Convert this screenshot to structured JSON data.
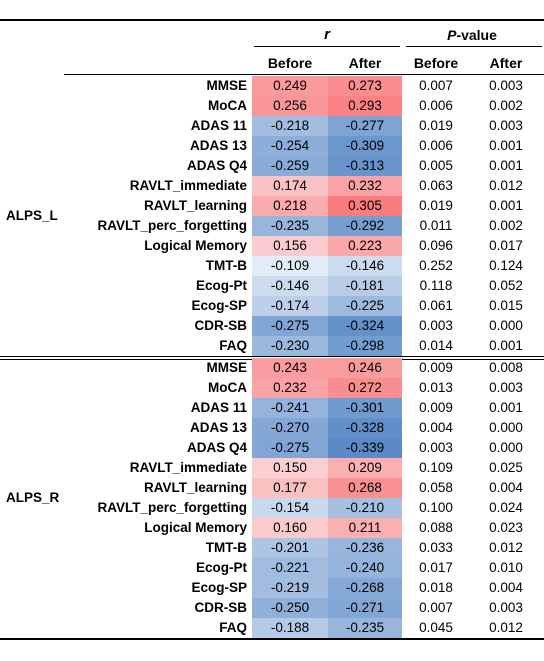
{
  "header": {
    "r_label": "r",
    "p_label_italic": "P",
    "p_label_rest": "-value",
    "columns": [
      "Before",
      "After",
      "Before",
      "After"
    ]
  },
  "groups": [
    {
      "name": "ALPS_L",
      "rows": [
        {
          "label": "MMSE",
          "r_before": "0.249",
          "r_after": "0.273",
          "p_before": "0.007",
          "p_after": "0.003"
        },
        {
          "label": "MoCA",
          "r_before": "0.256",
          "r_after": "0.293",
          "p_before": "0.006",
          "p_after": "0.002"
        },
        {
          "label": "ADAS 11",
          "r_before": "-0.218",
          "r_after": "-0.277",
          "p_before": "0.019",
          "p_after": "0.003"
        },
        {
          "label": "ADAS 13",
          "r_before": "-0.254",
          "r_after": "-0.309",
          "p_before": "0.006",
          "p_after": "0.001"
        },
        {
          "label": "ADAS Q4",
          "r_before": "-0.259",
          "r_after": "-0.313",
          "p_before": "0.005",
          "p_after": "0.001"
        },
        {
          "label": "RAVLT_immediate",
          "r_before": "0.174",
          "r_after": "0.232",
          "p_before": "0.063",
          "p_after": "0.012"
        },
        {
          "label": "RAVLT_learning",
          "r_before": "0.218",
          "r_after": "0.305",
          "p_before": "0.019",
          "p_after": "0.001"
        },
        {
          "label": "RAVLT_perc_forgetting",
          "r_before": "-0.235",
          "r_after": "-0.292",
          "p_before": "0.011",
          "p_after": "0.002"
        },
        {
          "label": "Logical Memory",
          "r_before": "0.156",
          "r_after": "0.223",
          "p_before": "0.096",
          "p_after": "0.017"
        },
        {
          "label": "TMT-B",
          "r_before": "-0.109",
          "r_after": "-0.146",
          "p_before": "0.252",
          "p_after": "0.124"
        },
        {
          "label": "Ecog-Pt",
          "r_before": "-0.146",
          "r_after": "-0.181",
          "p_before": "0.118",
          "p_after": "0.052"
        },
        {
          "label": "Ecog-SP",
          "r_before": "-0.174",
          "r_after": "-0.225",
          "p_before": "0.061",
          "p_after": "0.015"
        },
        {
          "label": "CDR-SB",
          "r_before": "-0.275",
          "r_after": "-0.324",
          "p_before": "0.003",
          "p_after": "0.000"
        },
        {
          "label": "FAQ",
          "r_before": "-0.230",
          "r_after": "-0.298",
          "p_before": "0.014",
          "p_after": "0.001"
        }
      ]
    },
    {
      "name": "ALPS_R",
      "rows": [
        {
          "label": "MMSE",
          "r_before": "0.243",
          "r_after": "0.246",
          "p_before": "0.009",
          "p_after": "0.008"
        },
        {
          "label": "MoCA",
          "r_before": "0.232",
          "r_after": "0.272",
          "p_before": "0.013",
          "p_after": "0.003"
        },
        {
          "label": "ADAS 11",
          "r_before": "-0.241",
          "r_after": "-0.301",
          "p_before": "0.009",
          "p_after": "0.001"
        },
        {
          "label": "ADAS 13",
          "r_before": "-0.270",
          "r_after": "-0.328",
          "p_before": "0.004",
          "p_after": "0.000"
        },
        {
          "label": "ADAS Q4",
          "r_before": "-0.275",
          "r_after": "-0.339",
          "p_before": "0.003",
          "p_after": "0.000"
        },
        {
          "label": "RAVLT_immediate",
          "r_before": "0.150",
          "r_after": "0.209",
          "p_before": "0.109",
          "p_after": "0.025"
        },
        {
          "label": "RAVLT_learning",
          "r_before": "0.177",
          "r_after": "0.268",
          "p_before": "0.058",
          "p_after": "0.004"
        },
        {
          "label": "RAVLT_perc_forgetting",
          "r_before": "-0.154",
          "r_after": "-0.210",
          "p_before": "0.100",
          "p_after": "0.024"
        },
        {
          "label": "Logical Memory",
          "r_before": "0.160",
          "r_after": "0.211",
          "p_before": "0.088",
          "p_after": "0.023"
        },
        {
          "label": "TMT-B",
          "r_before": "-0.201",
          "r_after": "-0.236",
          "p_before": "0.033",
          "p_after": "0.012"
        },
        {
          "label": "Ecog-Pt",
          "r_before": "-0.221",
          "r_after": "-0.240",
          "p_before": "0.017",
          "p_after": "0.010"
        },
        {
          "label": "Ecog-SP",
          "r_before": "-0.219",
          "r_after": "-0.268",
          "p_before": "0.018",
          "p_after": "0.004"
        },
        {
          "label": "CDR-SB",
          "r_before": "-0.250",
          "r_after": "-0.271",
          "p_before": "0.007",
          "p_after": "0.003"
        },
        {
          "label": "FAQ",
          "r_before": "-0.188",
          "r_after": "-0.235",
          "p_before": "0.045",
          "p_after": "0.012"
        }
      ]
    }
  ],
  "colors": {
    "positive": "#f8696b",
    "negative": "#5a8ac6",
    "neutral": "#fcfcff"
  }
}
